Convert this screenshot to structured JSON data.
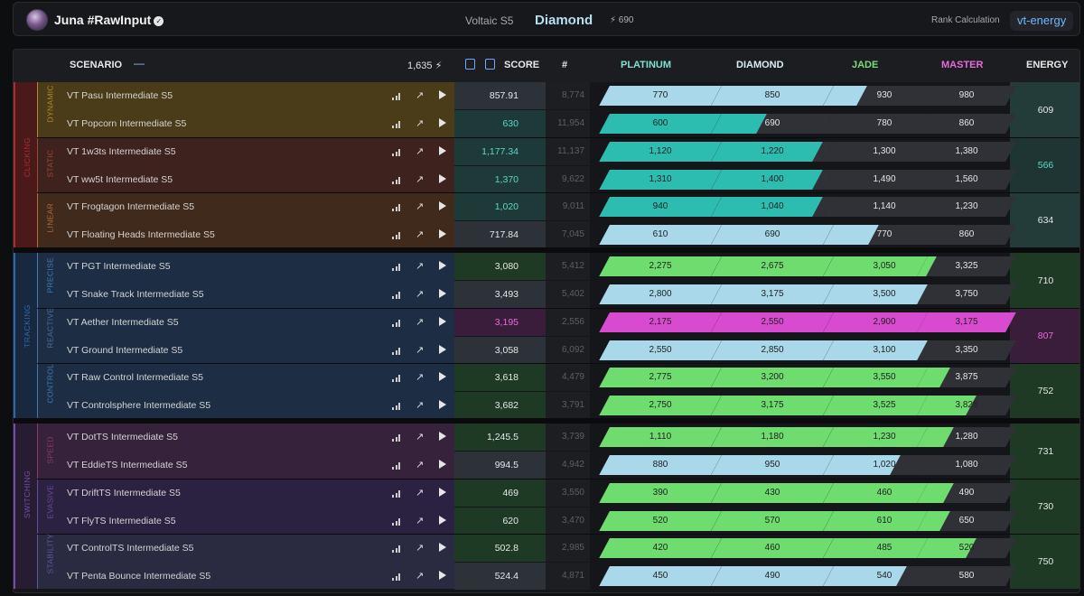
{
  "header": {
    "username": "Juna #RawInput",
    "season": "Voltaic S5",
    "rank": "Diamond",
    "energy": "⚡ 690",
    "rank_calc_label": "Rank Calculation",
    "rank_calc_value": "vt-energy"
  },
  "columns": {
    "scenario": "SCENARIO",
    "collapse": "—",
    "total": "1,635 ⚡",
    "score": "SCORE",
    "num": "#",
    "platinum": "PLATINUM",
    "diamond": "DIAMOND",
    "jade": "JADE",
    "master": "MASTER",
    "energy": "ENERGY"
  },
  "colors": {
    "platinum": "#7ce3d0",
    "diamond": "#a8d8ea",
    "jade": "#77dd77",
    "master": "#e86bdc",
    "teal": "#2cbdb0",
    "light_blue": "#a8d8ea",
    "green": "#6edc6e",
    "magenta": "#d84ad0"
  },
  "categories": [
    {
      "label": "CLICKING",
      "color": "#b22a2a",
      "bg": "#4a1a1a",
      "subs": [
        {
          "label": "DYNAMIC",
          "color": "#b08a2a",
          "bg": "#4a3c18",
          "energy": "609",
          "energy_bg": "#233c3a",
          "energy_color": "#e6e6e6",
          "rows": [
            {
              "name": "VT Pasu Intermediate S5",
              "score": "857.91",
              "num": "8,774",
              "score_bg": "#2d3238",
              "score_color": "#e8e8e8",
              "fill": "diamond",
              "ranks": [
                "770",
                "850",
                "930",
                "980"
              ],
              "progress": 2.3
            },
            {
              "name": "VT Popcorn Intermediate S5",
              "score": "630",
              "num": "11,954",
              "score_bg": "#1d3a38",
              "score_color": "#5fd6c6",
              "fill": "teal",
              "ranks": [
                "600",
                "690",
                "780",
                "860"
              ],
              "progress": 1.4
            }
          ]
        },
        {
          "label": "STATIC",
          "color": "#a04838",
          "bg": "#3e221d",
          "energy": "566",
          "energy_bg": "#1f3533",
          "energy_color": "#5fd6c6",
          "rows": [
            {
              "name": "VT 1w3ts Intermediate S5",
              "score": "1,177.34",
              "num": "11,137",
              "score_bg": "#1d3a38",
              "score_color": "#5fd6c6",
              "fill": "teal",
              "ranks": [
                "1,120",
                "1,220",
                "1,300",
                "1,380"
              ],
              "progress": 1.9
            },
            {
              "name": "VT ww5t Intermediate S5",
              "score": "1,370",
              "num": "9,622",
              "score_bg": "#1d3a38",
              "score_color": "#5fd6c6",
              "fill": "teal",
              "ranks": [
                "1,310",
                "1,400",
                "1,490",
                "1,560"
              ],
              "progress": 1.9
            }
          ]
        },
        {
          "label": "LINEAR",
          "color": "#b86a38",
          "bg": "#402a1c",
          "energy": "634",
          "energy_bg": "#233c3a",
          "energy_color": "#e6e6e6",
          "rows": [
            {
              "name": "VT Frogtagon Intermediate S5",
              "score": "1,020",
              "num": "9,011",
              "score_bg": "#1d3a38",
              "score_color": "#5fd6c6",
              "fill": "teal",
              "ranks": [
                "940",
                "1,040",
                "1,140",
                "1,230"
              ],
              "progress": 1.9
            },
            {
              "name": "VT Floating Heads Intermediate S5",
              "score": "717.84",
              "num": "7,045",
              "score_bg": "#2d3238",
              "score_color": "#e8e8e8",
              "fill": "diamond",
              "ranks": [
                "610",
                "690",
                "770",
                "860"
              ],
              "progress": 2.4
            }
          ]
        }
      ]
    },
    {
      "label": "TRACKING",
      "color": "#2a6ab2",
      "bg": "#18283e",
      "subs": [
        {
          "label": "PRECISE",
          "color": "#3e7cb8",
          "bg": "#1d2e44",
          "energy": "710",
          "energy_bg": "#1f3a24",
          "energy_color": "#e6e6e6",
          "rows": [
            {
              "name": "VT PGT Intermediate S5",
              "score": "3,080",
              "num": "5,412",
              "score_bg": "#1f3a24",
              "score_color": "#e8e8e8",
              "fill": "green",
              "ranks": [
                "2,275",
                "2,675",
                "3,050",
                "3,325"
              ],
              "progress": 3.1
            },
            {
              "name": "VT Snake Track Intermediate S5",
              "score": "3,493",
              "num": "5,402",
              "score_bg": "#2d3238",
              "score_color": "#e8e8e8",
              "fill": "diamond",
              "ranks": [
                "2,800",
                "3,175",
                "3,500",
                "3,750"
              ],
              "progress": 2.95
            }
          ]
        },
        {
          "label": "REACTIVE",
          "color": "#4a6e9e",
          "bg": "#1d2e44",
          "energy": "807",
          "energy_bg": "#3a1d3a",
          "energy_color": "#e86bdc",
          "rows": [
            {
              "name": "VT Aether Intermediate S5",
              "score": "3,195",
              "num": "2,556",
              "score_bg": "#3a1d3a",
              "score_color": "#e86bdc",
              "fill": "magenta",
              "ranks": [
                "2,175",
                "2,550",
                "2,900",
                "3,175"
              ],
              "progress": 4.0
            },
            {
              "name": "VT Ground Intermediate S5",
              "score": "3,058",
              "num": "6,092",
              "score_bg": "#2d3238",
              "score_color": "#e8e8e8",
              "fill": "diamond",
              "ranks": [
                "2,550",
                "2,850",
                "3,100",
                "3,350"
              ],
              "progress": 2.85
            }
          ]
        },
        {
          "label": "CONTROL",
          "color": "#3a7ab0",
          "bg": "#1d2e44",
          "energy": "752",
          "energy_bg": "#1f3a24",
          "energy_color": "#e6e6e6",
          "rows": [
            {
              "name": "VT Raw Control Intermediate S5",
              "score": "3,618",
              "num": "4,479",
              "score_bg": "#1f3a24",
              "score_color": "#e8e8e8",
              "fill": "green",
              "ranks": [
                "2,775",
                "3,200",
                "3,550",
                "3,875"
              ],
              "progress": 3.25
            },
            {
              "name": "VT Controlsphere Intermediate S5",
              "score": "3,682",
              "num": "3,791",
              "score_bg": "#1f3a24",
              "score_color": "#e8e8e8",
              "fill": "green",
              "ranks": [
                "2,750",
                "3,175",
                "3,525",
                "3,825"
              ],
              "progress": 3.55
            }
          ]
        }
      ]
    },
    {
      "label": "SWITCHING",
      "color": "#7a4aa8",
      "bg": "#261d33",
      "subs": [
        {
          "label": "SPEED",
          "color": "#8a3a6a",
          "bg": "#36223a",
          "energy": "731",
          "energy_bg": "#1f3a24",
          "energy_color": "#e6e6e6",
          "rows": [
            {
              "name": "VT DotTS Intermediate S5",
              "score": "1,245.5",
              "num": "3,739",
              "score_bg": "#1f3a24",
              "score_color": "#e8e8e8",
              "fill": "green",
              "ranks": [
                "1,110",
                "1,180",
                "1,230",
                "1,280"
              ],
              "progress": 3.3
            },
            {
              "name": "VT EddieTS Intermediate S5",
              "score": "994.5",
              "num": "4,942",
              "score_bg": "#2d3238",
              "score_color": "#e8e8e8",
              "fill": "diamond",
              "ranks": [
                "880",
                "950",
                "1,020",
                "1,080"
              ],
              "progress": 2.6
            }
          ]
        },
        {
          "label": "EVASIVE",
          "color": "#6a4a9e",
          "bg": "#2a2240",
          "energy": "730",
          "energy_bg": "#1f3a24",
          "energy_color": "#e6e6e6",
          "rows": [
            {
              "name": "VT DriftTS Intermediate S5",
              "score": "469",
              "num": "3,550",
              "score_bg": "#1f3a24",
              "score_color": "#e8e8e8",
              "fill": "green",
              "ranks": [
                "390",
                "430",
                "460",
                "490"
              ],
              "progress": 3.3
            },
            {
              "name": "VT FlyTS Intermediate S5",
              "score": "620",
              "num": "3,470",
              "score_bg": "#1f3a24",
              "score_color": "#e8e8e8",
              "fill": "green",
              "ranks": [
                "520",
                "570",
                "610",
                "650"
              ],
              "progress": 3.25
            }
          ]
        },
        {
          "label": "STABILITY",
          "color": "#5a5a9e",
          "bg": "#2a2a40",
          "energy": "750",
          "energy_bg": "#1f3a24",
          "energy_color": "#e6e6e6",
          "rows": [
            {
              "name": "VT ControlTS Intermediate S5",
              "score": "502.8",
              "num": "2,985",
              "score_bg": "#1f3a24",
              "score_color": "#e8e8e8",
              "fill": "green",
              "ranks": [
                "420",
                "460",
                "485",
                "520"
              ],
              "progress": 3.55
            },
            {
              "name": "VT Penta Bounce Intermediate S5",
              "score": "524.4",
              "num": "4,871",
              "score_bg": "#2d3238",
              "score_color": "#e8e8e8",
              "fill": "diamond",
              "ranks": [
                "450",
                "490",
                "540",
                "580"
              ],
              "progress": 2.65
            }
          ]
        }
      ]
    }
  ]
}
